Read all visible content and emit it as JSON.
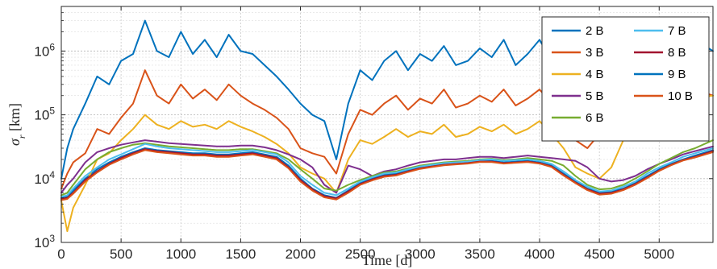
{
  "chart_data": {
    "type": "line",
    "title": "",
    "xlabel": "Time [d]",
    "ylabel": "σ_r [km]",
    "xlim": [
      0,
      5450
    ],
    "ylim": [
      1000,
      5000000
    ],
    "yscale": "log",
    "grid": true,
    "legend_position": "top-right",
    "x_ticks": [
      0,
      500,
      1000,
      1500,
      2000,
      2500,
      3000,
      3500,
      4000,
      4500,
      5000
    ],
    "x_tick_labels": [
      "0",
      "500",
      "1000",
      "1500",
      "2000",
      "2500",
      "3000",
      "3500",
      "4000",
      "4500",
      "5000"
    ],
    "y_ticks": [
      1000,
      10000,
      100000,
      1000000
    ],
    "y_tick_labels": [
      {
        "base": "10",
        "exp": "3"
      },
      {
        "base": "10",
        "exp": "4"
      },
      {
        "base": "10",
        "exp": "5"
      },
      {
        "base": "10",
        "exp": "6"
      }
    ],
    "x": [
      0,
      50,
      100,
      200,
      300,
      400,
      500,
      600,
      700,
      800,
      900,
      1000,
      1100,
      1200,
      1300,
      1400,
      1500,
      1600,
      1700,
      1800,
      1900,
      2000,
      2100,
      2200,
      2300,
      2400,
      2500,
      2600,
      2700,
      2800,
      2900,
      3000,
      3100,
      3200,
      3300,
      3400,
      3500,
      3600,
      3700,
      3800,
      3900,
      4000,
      4100,
      4200,
      4300,
      4400,
      4500,
      4600,
      4700,
      4800,
      4900,
      5000,
      5100,
      5200,
      5300,
      5450
    ],
    "series": [
      {
        "name": "2 B",
        "color": "#0072BD",
        "values": [
          5000,
          5200,
          6500,
          10000,
          14000,
          18000,
          22000,
          26000,
          30000,
          28000,
          27000,
          26000,
          25000,
          25000,
          24000,
          24000,
          25000,
          26000,
          24000,
          22000,
          16000,
          10000,
          7000,
          5500,
          5000,
          6500,
          8500,
          10000,
          11500,
          12000,
          13500,
          15000,
          16000,
          17000,
          17500,
          18000,
          19000,
          19000,
          18000,
          18500,
          19000,
          18000,
          16000,
          12000,
          9000,
          7000,
          6000,
          6200,
          7000,
          8500,
          11000,
          14000,
          17000,
          20000,
          23000,
          28000
        ]
      },
      {
        "name": "3 B",
        "color": "#D95319",
        "values": [
          7000,
          12000,
          18000,
          25000,
          60000,
          50000,
          90000,
          150000,
          500000,
          200000,
          150000,
          300000,
          180000,
          250000,
          170000,
          300000,
          200000,
          150000,
          120000,
          90000,
          60000,
          30000,
          25000,
          22000,
          12000,
          50000,
          120000,
          100000,
          150000,
          200000,
          120000,
          180000,
          150000,
          250000,
          130000,
          150000,
          200000,
          160000,
          250000,
          140000,
          180000,
          250000,
          150000,
          90000,
          40000,
          30000,
          50000,
          70000,
          150000,
          120000,
          180000,
          250000,
          200000,
          300000,
          250000,
          200000
        ]
      },
      {
        "name": "4 B",
        "color": "#EDB120",
        "values": [
          4500,
          1500,
          3500,
          8000,
          20000,
          25000,
          40000,
          60000,
          100000,
          70000,
          60000,
          80000,
          65000,
          70000,
          60000,
          80000,
          65000,
          55000,
          45000,
          35000,
          25000,
          15000,
          12000,
          10000,
          6000,
          20000,
          40000,
          35000,
          45000,
          60000,
          45000,
          55000,
          50000,
          70000,
          45000,
          50000,
          65000,
          55000,
          70000,
          50000,
          60000,
          80000,
          50000,
          30000,
          15000,
          12000,
          10000,
          15000,
          40000,
          50000,
          70000,
          100000,
          90000,
          150000,
          180000,
          200000
        ]
      },
      {
        "name": "5 B",
        "color": "#7E2F8E",
        "values": [
          6000,
          8000,
          10000,
          18000,
          26000,
          30000,
          34000,
          37000,
          40000,
          38000,
          36000,
          35000,
          34000,
          33000,
          32000,
          32000,
          33000,
          33000,
          31000,
          28000,
          24000,
          20000,
          15000,
          8000,
          6000,
          16000,
          14000,
          11000,
          13000,
          14000,
          16000,
          18000,
          19000,
          20000,
          20000,
          21000,
          22000,
          22000,
          21000,
          22000,
          23000,
          22000,
          21000,
          20000,
          19000,
          15000,
          10000,
          9000,
          9500,
          11000,
          14000,
          17000,
          20000,
          24000,
          27000,
          32000
        ]
      },
      {
        "name": "6 B",
        "color": "#77AC30",
        "values": [
          5500,
          6000,
          8000,
          14000,
          20000,
          26000,
          30000,
          34000,
          36000,
          34000,
          32000,
          31000,
          30000,
          29000,
          28000,
          28000,
          29000,
          29000,
          27000,
          25000,
          20000,
          14000,
          10000,
          7000,
          6500,
          8000,
          9500,
          11000,
          12500,
          13000,
          14500,
          16000,
          17000,
          18000,
          18500,
          19000,
          20000,
          20500,
          19500,
          20000,
          21000,
          20000,
          19000,
          16000,
          11000,
          8000,
          6800,
          7000,
          8000,
          10000,
          13000,
          17000,
          21000,
          26000,
          30000,
          40000
        ]
      },
      {
        "name": "7 B",
        "color": "#4DBEEE",
        "values": [
          5200,
          5500,
          7000,
          11000,
          15000,
          20000,
          24000,
          29000,
          35000,
          32000,
          30000,
          29000,
          28000,
          27000,
          26000,
          26000,
          27000,
          28000,
          26000,
          24000,
          18000,
          11000,
          8000,
          6000,
          5500,
          7000,
          9000,
          10500,
          12000,
          12500,
          14000,
          15500,
          16500,
          17500,
          18000,
          18500,
          19500,
          20000,
          19000,
          19500,
          20000,
          19000,
          17000,
          13000,
          9500,
          7500,
          6300,
          6500,
          7500,
          9000,
          12000,
          15000,
          18000,
          22000,
          25000,
          30000
        ]
      },
      {
        "name": "8 B",
        "color": "#A2142F",
        "values": [
          4800,
          5000,
          6000,
          9500,
          13000,
          17000,
          21000,
          25000,
          29000,
          27000,
          26000,
          25000,
          24000,
          24000,
          23000,
          23000,
          24000,
          25000,
          23000,
          21000,
          15000,
          9500,
          6800,
          5300,
          4900,
          6300,
          8200,
          9700,
          11000,
          11500,
          13000,
          14500,
          15500,
          16500,
          17000,
          17500,
          18500,
          18500,
          17500,
          18000,
          18500,
          17500,
          15500,
          11500,
          8700,
          6800,
          5800,
          6000,
          6800,
          8200,
          10500,
          13500,
          16500,
          19500,
          22000,
          27000
        ]
      },
      {
        "name": "9 B",
        "color": "#0072BD",
        "values": [
          10000,
          30000,
          60000,
          150000,
          400000,
          300000,
          700000,
          900000,
          3000000,
          1000000,
          800000,
          2000000,
          900000,
          1500000,
          800000,
          1800000,
          1000000,
          900000,
          600000,
          400000,
          250000,
          150000,
          100000,
          80000,
          20000,
          150000,
          500000,
          350000,
          700000,
          1000000,
          500000,
          900000,
          700000,
          1200000,
          600000,
          700000,
          1100000,
          800000,
          1500000,
          600000,
          900000,
          1500000,
          700000,
          400000,
          150000,
          120000,
          200000,
          300000,
          700000,
          500000,
          900000,
          1200000,
          1000000,
          2000000,
          1500000,
          1000000
        ]
      },
      {
        "name": "10 B",
        "color": "#D95319",
        "values": [
          4600,
          4800,
          5800,
          9000,
          12500,
          16500,
          20000,
          24000,
          28000,
          26000,
          25000,
          24000,
          23000,
          23000,
          22000,
          22000,
          23000,
          24000,
          22000,
          20000,
          14500,
          9000,
          6500,
          5100,
          4700,
          6000,
          8000,
          9400,
          10700,
          11200,
          12700,
          14200,
          15200,
          16200,
          16700,
          17200,
          18200,
          18200,
          17200,
          17700,
          18200,
          17200,
          15200,
          11200,
          8500,
          6600,
          5600,
          5800,
          6600,
          8000,
          10200,
          13200,
          16200,
          19200,
          21500,
          26000
        ]
      }
    ]
  }
}
